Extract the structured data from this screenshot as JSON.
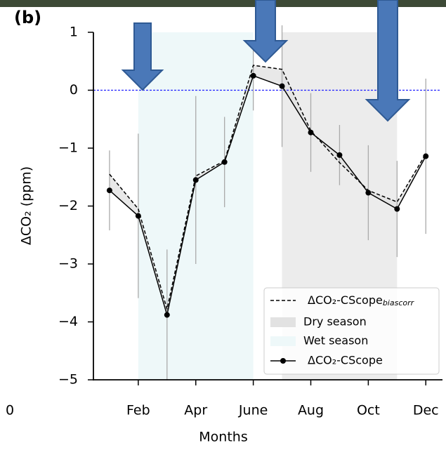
{
  "chart_data": {
    "type": "line",
    "title": "(b)",
    "xlabel": "Months",
    "ylabel": "ΔCO₂ (ppm)",
    "outside_label": "0",
    "x": [
      1,
      2,
      3,
      4,
      5,
      6,
      7,
      8,
      9,
      10,
      11,
      12
    ],
    "xlim": [
      0.44,
      12.58
    ],
    "xticks": [
      {
        "value": 2,
        "label": "Feb"
      },
      {
        "value": 4,
        "label": "Apr"
      },
      {
        "value": 6,
        "label": "June"
      },
      {
        "value": 8,
        "label": "Aug"
      },
      {
        "value": 10,
        "label": "Oct"
      },
      {
        "value": 12,
        "label": "Dec"
      }
    ],
    "ylim": [
      -5,
      1
    ],
    "yticks": [
      {
        "value": -5,
        "label": "−5"
      },
      {
        "value": -4,
        "label": "−4"
      },
      {
        "value": -3,
        "label": "−3"
      },
      {
        "value": -2,
        "label": "−2"
      },
      {
        "value": -1,
        "label": "−1"
      },
      0,
      1
    ],
    "hline": {
      "value": 0,
      "color": "#2020ff"
    },
    "band_color": "#e2e2e2",
    "spans": [
      {
        "name": "Dry season",
        "range": [
          7,
          11
        ],
        "color": "#ececec"
      },
      {
        "name": "Wet season",
        "range": [
          2,
          6
        ],
        "color": "#eef8f9"
      }
    ],
    "series": [
      {
        "name": "ΔCO₂-CScope",
        "name_subscript": "biascorr",
        "color": "#000000",
        "style": "dashed",
        "values": [
          -1.45,
          -2.05,
          -3.78,
          -1.48,
          -1.22,
          0.43,
          0.36,
          -0.7,
          -1.25,
          -1.73,
          -1.93,
          -1.1
        ]
      },
      {
        "name": "ΔCO₂-CScope",
        "color": "#000000",
        "style": "solid",
        "marker": true,
        "error_color": "#aaaaaa",
        "values": [
          -1.73,
          -2.17,
          -3.88,
          -1.55,
          -1.24,
          0.25,
          0.07,
          -0.73,
          -1.12,
          -1.77,
          -2.05,
          -1.14
        ],
        "errors": [
          0.69,
          1.42,
          1.13,
          1.45,
          0.78,
          0.6,
          1.05,
          0.68,
          0.52,
          0.82,
          0.83,
          1.34
        ]
      }
    ],
    "legend": "lower right"
  }
}
